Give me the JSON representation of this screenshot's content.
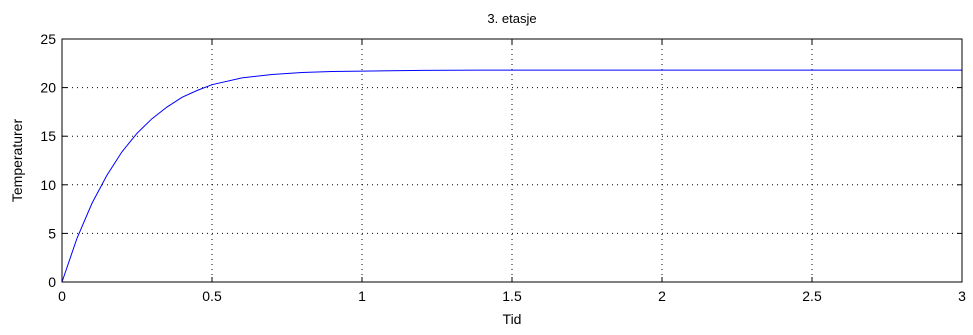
{
  "chart_data": {
    "type": "line",
    "title": "3. etasje",
    "xlabel": "Tid",
    "ylabel": "Temperaturer",
    "xlim": [
      0,
      3
    ],
    "ylim": [
      0,
      25
    ],
    "xticks": [
      0,
      0.5,
      1,
      1.5,
      2,
      2.5,
      3
    ],
    "xtick_labels": [
      "0",
      "0.5",
      "1",
      "1.5",
      "2",
      "2.5",
      "3"
    ],
    "yticks": [
      0,
      5,
      10,
      15,
      20,
      25
    ],
    "ytick_labels": [
      "0",
      "5",
      "10",
      "15",
      "20",
      "25"
    ],
    "grid": true,
    "legend": "none",
    "series": [
      {
        "color": "#0000ff",
        "x": [
          0,
          0.05,
          0.1,
          0.15,
          0.2,
          0.25,
          0.3,
          0.35,
          0.4,
          0.45,
          0.5,
          0.6,
          0.7,
          0.8,
          0.9,
          1.0,
          1.2,
          1.4,
          1.6,
          1.8,
          2.0,
          2.5,
          3.0
        ],
        "y": [
          0,
          4.5,
          8.1,
          11.0,
          13.4,
          15.3,
          16.8,
          18.0,
          19.0,
          19.7,
          20.3,
          21.0,
          21.35,
          21.55,
          21.65,
          21.7,
          21.77,
          21.8,
          21.8,
          21.8,
          21.8,
          21.8,
          21.8
        ]
      }
    ]
  }
}
